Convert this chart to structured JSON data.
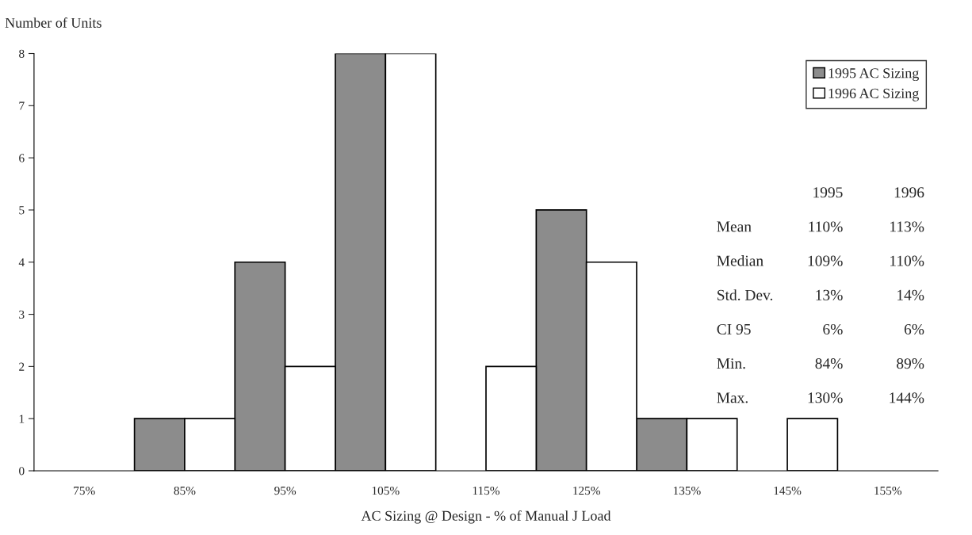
{
  "chart_data": {
    "type": "bar",
    "ylabel": "Number of Units",
    "xlabel": "AC Sizing @ Design - % of Manual J Load",
    "categories": [
      "75%",
      "85%",
      "95%",
      "105%",
      "115%",
      "125%",
      "135%",
      "145%",
      "155%"
    ],
    "series": [
      {
        "name": "1995 AC Sizing",
        "color": "#8c8c8c",
        "values": [
          0,
          1,
          4,
          8,
          0,
          5,
          1,
          0,
          0
        ]
      },
      {
        "name": "1996 AC Sizing",
        "color": "#ffffff",
        "values": [
          0,
          1,
          2,
          8,
          2,
          4,
          1,
          1,
          0
        ]
      }
    ],
    "ylim": [
      0,
      8
    ],
    "yticks": [
      0,
      1,
      2,
      3,
      4,
      5,
      6,
      7,
      8
    ],
    "grid": false,
    "legend": "top right",
    "annotations": [
      "1995",
      "1996",
      "Mean",
      "110%",
      "113%",
      "Median",
      "109%",
      "110%",
      "Std. Dev.",
      "13%",
      "14%",
      "CI 95",
      "6%",
      "6%",
      "Min.",
      "84%",
      "89%",
      "Max.",
      "130%",
      "144%"
    ]
  }
}
